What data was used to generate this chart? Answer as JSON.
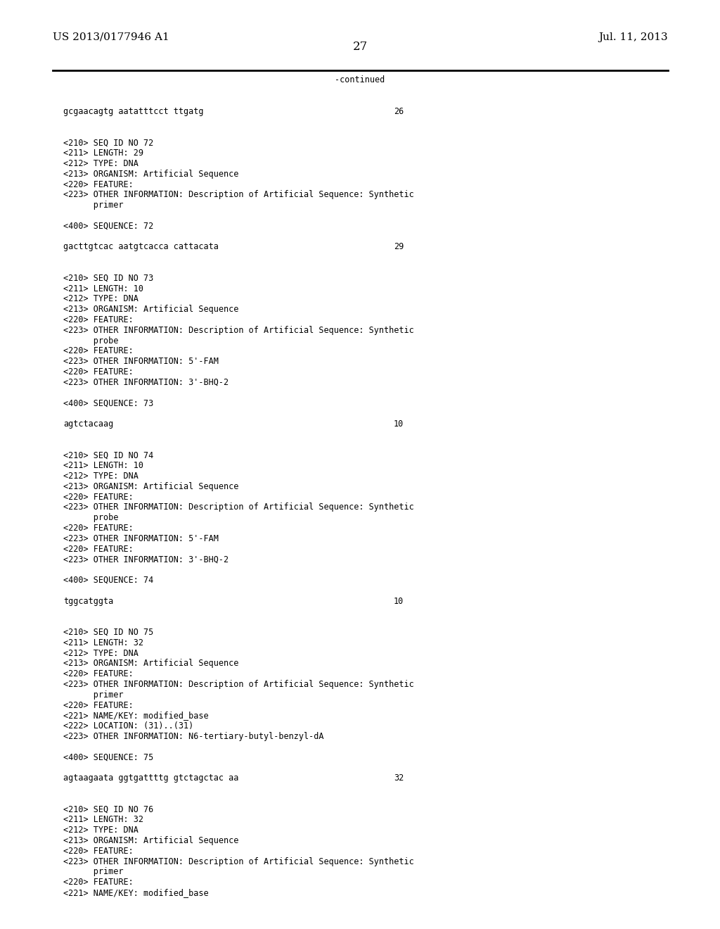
{
  "background_color": "#ffffff",
  "header_left": "US 2013/0177946 A1",
  "header_right": "Jul. 11, 2013",
  "page_number": "27",
  "continued_text": "-continued",
  "font_size_header": 11,
  "font_size_page": 12,
  "font_size_mono": 8.5,
  "lines": [
    {
      "text": "gcgaacagtg aatatttcct ttgatg",
      "num": "26",
      "is_seq": true
    },
    {
      "text": "",
      "num": null,
      "is_seq": false
    },
    {
      "text": "",
      "num": null,
      "is_seq": false
    },
    {
      "text": "<210> SEQ ID NO 72",
      "num": null,
      "is_seq": false
    },
    {
      "text": "<211> LENGTH: 29",
      "num": null,
      "is_seq": false
    },
    {
      "text": "<212> TYPE: DNA",
      "num": null,
      "is_seq": false
    },
    {
      "text": "<213> ORGANISM: Artificial Sequence",
      "num": null,
      "is_seq": false
    },
    {
      "text": "<220> FEATURE:",
      "num": null,
      "is_seq": false
    },
    {
      "text": "<223> OTHER INFORMATION: Description of Artificial Sequence: Synthetic",
      "num": null,
      "is_seq": false
    },
    {
      "text": "      primer",
      "num": null,
      "is_seq": false
    },
    {
      "text": "",
      "num": null,
      "is_seq": false
    },
    {
      "text": "<400> SEQUENCE: 72",
      "num": null,
      "is_seq": false
    },
    {
      "text": "",
      "num": null,
      "is_seq": false
    },
    {
      "text": "gacttgtcac aatgtcacca cattacata",
      "num": "29",
      "is_seq": true
    },
    {
      "text": "",
      "num": null,
      "is_seq": false
    },
    {
      "text": "",
      "num": null,
      "is_seq": false
    },
    {
      "text": "<210> SEQ ID NO 73",
      "num": null,
      "is_seq": false
    },
    {
      "text": "<211> LENGTH: 10",
      "num": null,
      "is_seq": false
    },
    {
      "text": "<212> TYPE: DNA",
      "num": null,
      "is_seq": false
    },
    {
      "text": "<213> ORGANISM: Artificial Sequence",
      "num": null,
      "is_seq": false
    },
    {
      "text": "<220> FEATURE:",
      "num": null,
      "is_seq": false
    },
    {
      "text": "<223> OTHER INFORMATION: Description of Artificial Sequence: Synthetic",
      "num": null,
      "is_seq": false
    },
    {
      "text": "      probe",
      "num": null,
      "is_seq": false
    },
    {
      "text": "<220> FEATURE:",
      "num": null,
      "is_seq": false
    },
    {
      "text": "<223> OTHER INFORMATION: 5'-FAM",
      "num": null,
      "is_seq": false
    },
    {
      "text": "<220> FEATURE:",
      "num": null,
      "is_seq": false
    },
    {
      "text": "<223> OTHER INFORMATION: 3'-BHQ-2",
      "num": null,
      "is_seq": false
    },
    {
      "text": "",
      "num": null,
      "is_seq": false
    },
    {
      "text": "<400> SEQUENCE: 73",
      "num": null,
      "is_seq": false
    },
    {
      "text": "",
      "num": null,
      "is_seq": false
    },
    {
      "text": "agtctacaag",
      "num": "10",
      "is_seq": true
    },
    {
      "text": "",
      "num": null,
      "is_seq": false
    },
    {
      "text": "",
      "num": null,
      "is_seq": false
    },
    {
      "text": "<210> SEQ ID NO 74",
      "num": null,
      "is_seq": false
    },
    {
      "text": "<211> LENGTH: 10",
      "num": null,
      "is_seq": false
    },
    {
      "text": "<212> TYPE: DNA",
      "num": null,
      "is_seq": false
    },
    {
      "text": "<213> ORGANISM: Artificial Sequence",
      "num": null,
      "is_seq": false
    },
    {
      "text": "<220> FEATURE:",
      "num": null,
      "is_seq": false
    },
    {
      "text": "<223> OTHER INFORMATION: Description of Artificial Sequence: Synthetic",
      "num": null,
      "is_seq": false
    },
    {
      "text": "      probe",
      "num": null,
      "is_seq": false
    },
    {
      "text": "<220> FEATURE:",
      "num": null,
      "is_seq": false
    },
    {
      "text": "<223> OTHER INFORMATION: 5'-FAM",
      "num": null,
      "is_seq": false
    },
    {
      "text": "<220> FEATURE:",
      "num": null,
      "is_seq": false
    },
    {
      "text": "<223> OTHER INFORMATION: 3'-BHQ-2",
      "num": null,
      "is_seq": false
    },
    {
      "text": "",
      "num": null,
      "is_seq": false
    },
    {
      "text": "<400> SEQUENCE: 74",
      "num": null,
      "is_seq": false
    },
    {
      "text": "",
      "num": null,
      "is_seq": false
    },
    {
      "text": "tggcatggta",
      "num": "10",
      "is_seq": true
    },
    {
      "text": "",
      "num": null,
      "is_seq": false
    },
    {
      "text": "",
      "num": null,
      "is_seq": false
    },
    {
      "text": "<210> SEQ ID NO 75",
      "num": null,
      "is_seq": false
    },
    {
      "text": "<211> LENGTH: 32",
      "num": null,
      "is_seq": false
    },
    {
      "text": "<212> TYPE: DNA",
      "num": null,
      "is_seq": false
    },
    {
      "text": "<213> ORGANISM: Artificial Sequence",
      "num": null,
      "is_seq": false
    },
    {
      "text": "<220> FEATURE:",
      "num": null,
      "is_seq": false
    },
    {
      "text": "<223> OTHER INFORMATION: Description of Artificial Sequence: Synthetic",
      "num": null,
      "is_seq": false
    },
    {
      "text": "      primer",
      "num": null,
      "is_seq": false
    },
    {
      "text": "<220> FEATURE:",
      "num": null,
      "is_seq": false
    },
    {
      "text": "<221> NAME/KEY: modified_base",
      "num": null,
      "is_seq": false
    },
    {
      "text": "<222> LOCATION: (31)..(31)",
      "num": null,
      "is_seq": false
    },
    {
      "text": "<223> OTHER INFORMATION: N6-tertiary-butyl-benzyl-dA",
      "num": null,
      "is_seq": false
    },
    {
      "text": "",
      "num": null,
      "is_seq": false
    },
    {
      "text": "<400> SEQUENCE: 75",
      "num": null,
      "is_seq": false
    },
    {
      "text": "",
      "num": null,
      "is_seq": false
    },
    {
      "text": "agtaagaata ggtgattttg gtctagctac aa",
      "num": "32",
      "is_seq": true
    },
    {
      "text": "",
      "num": null,
      "is_seq": false
    },
    {
      "text": "",
      "num": null,
      "is_seq": false
    },
    {
      "text": "<210> SEQ ID NO 76",
      "num": null,
      "is_seq": false
    },
    {
      "text": "<211> LENGTH: 32",
      "num": null,
      "is_seq": false
    },
    {
      "text": "<212> TYPE: DNA",
      "num": null,
      "is_seq": false
    },
    {
      "text": "<213> ORGANISM: Artificial Sequence",
      "num": null,
      "is_seq": false
    },
    {
      "text": "<220> FEATURE:",
      "num": null,
      "is_seq": false
    },
    {
      "text": "<223> OTHER INFORMATION: Description of Artificial Sequence: Synthetic",
      "num": null,
      "is_seq": false
    },
    {
      "text": "      primer",
      "num": null,
      "is_seq": false
    },
    {
      "text": "<220> FEATURE:",
      "num": null,
      "is_seq": false
    },
    {
      "text": "<221> NAME/KEY: modified_base",
      "num": null,
      "is_seq": false
    }
  ]
}
